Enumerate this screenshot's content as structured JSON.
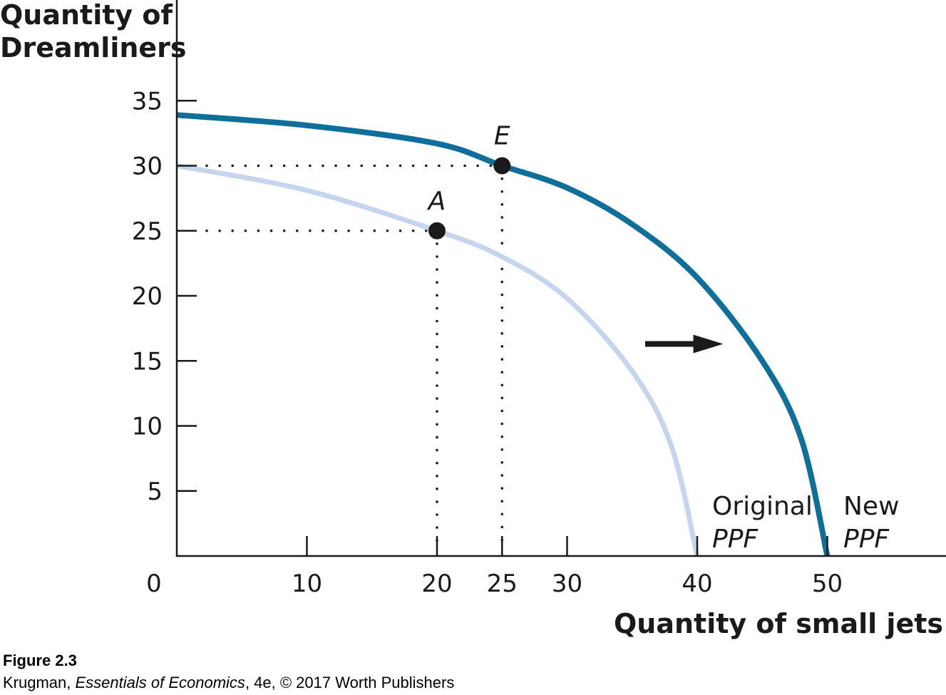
{
  "chart_data": {
    "type": "line",
    "ylabel_lines": [
      "Quantity of",
      "Dreamliners"
    ],
    "xlabel": "Quantity of small jets",
    "origin_label": "0",
    "xlim": [
      0,
      59
    ],
    "ylim": [
      0,
      35
    ],
    "x_ticks": [
      10,
      20,
      25,
      30,
      40,
      50
    ],
    "y_ticks": [
      5,
      10,
      15,
      20,
      25,
      30,
      35
    ],
    "series": [
      {
        "key": "original",
        "label_line1": "Original",
        "label_line2": "PPF",
        "color": "#c5d5ee",
        "x": [
          0,
          10,
          20,
          25,
          30,
          35,
          38,
          40
        ],
        "y": [
          30,
          28.1,
          25,
          23,
          19.8,
          14.2,
          8.5,
          0
        ]
      },
      {
        "key": "new",
        "label_line1": "New",
        "label_line2": "PPF",
        "color": "#0e6f9b",
        "x": [
          0,
          10,
          20,
          25,
          30,
          35,
          40,
          45,
          48,
          50
        ],
        "y": [
          33.9,
          33.1,
          31.7,
          30,
          28.3,
          25.5,
          21.4,
          15,
          9,
          0
        ]
      }
    ],
    "points": [
      {
        "label": "A",
        "x": 20,
        "y": 25
      },
      {
        "label": "E",
        "x": 25,
        "y": 30
      }
    ],
    "shift_arrow": {
      "direction": "right",
      "from": [
        36,
        16.3
      ],
      "to": [
        42,
        16.3
      ]
    }
  },
  "caption": {
    "title": "Figure 2.3",
    "credit_author": "Krugman, ",
    "credit_book": "Essentials of Economics",
    "credit_rest": ", 4e, © 2017 Worth Publishers"
  }
}
